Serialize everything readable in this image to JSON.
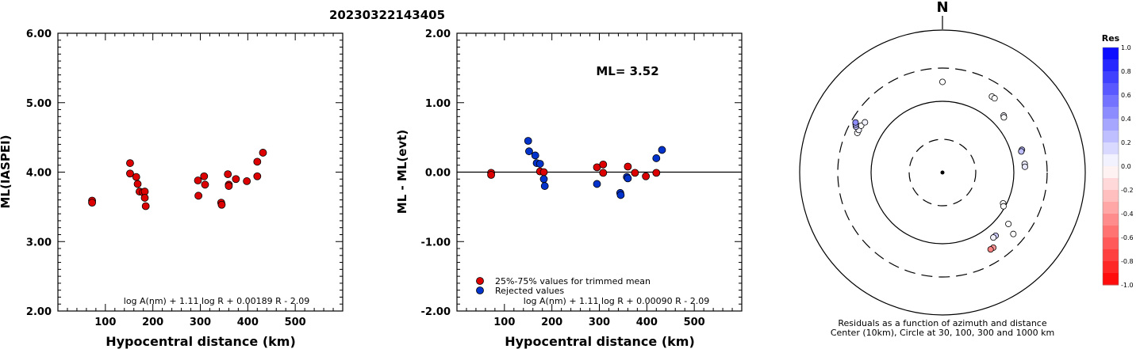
{
  "event_id": "20230322143405",
  "north_label": "N",
  "colors": {
    "red_marker": "#dd0000",
    "blue_marker": "#0033cc",
    "axis": "#000000"
  },
  "chart_data": [
    {
      "type": "scatter",
      "id": "ml_vs_distance",
      "xlabel": "Hypocentral distance (km)",
      "ylabel": "ML(IASPEI)",
      "xlim": [
        0,
        600
      ],
      "ylim": [
        2.0,
        6.0
      ],
      "xticks": [
        100,
        200,
        300,
        400,
        500
      ],
      "yticks": [
        "2.00",
        "3.00",
        "4.00",
        "5.00",
        "6.00"
      ],
      "formula": "log A(nm) + 1.11 log R + 0.00189 R - 2.09",
      "grid": false,
      "series": [
        {
          "marker_color": "red",
          "x": [
            72,
            72,
            152,
            152,
            165,
            168,
            172,
            179,
            183,
            183,
            185,
            295,
            296,
            308,
            310,
            344,
            345,
            358,
            360,
            360,
            375,
            398,
            420,
            420,
            432
          ],
          "y": [
            3.59,
            3.56,
            4.13,
            3.98,
            3.93,
            3.83,
            3.72,
            3.71,
            3.72,
            3.63,
            3.51,
            3.88,
            3.66,
            3.94,
            3.82,
            3.56,
            3.53,
            3.97,
            3.82,
            3.8,
            3.9,
            3.87,
            4.15,
            3.94,
            4.28
          ]
        }
      ]
    },
    {
      "type": "scatter",
      "id": "residual_vs_distance",
      "xlabel": "Hypocentral distance (km)",
      "ylabel": "ML - ML(evt)",
      "xlim": [
        0,
        600
      ],
      "ylim": [
        -2.0,
        2.0
      ],
      "xticks": [
        100,
        200,
        300,
        400,
        500
      ],
      "yticks": [
        "-2.00",
        "-1.00",
        "0.00",
        "1.00",
        "2.00"
      ],
      "annotation": "ML= 3.52",
      "formula": "log A(nm) + 1.11 log R + 0.00090 R - 2.09",
      "zero_line": true,
      "legend_position": "bottom-left",
      "series": [
        {
          "name": "25%-75% values for trimmed mean",
          "marker_color": "red",
          "x": [
            72,
            72,
            175,
            183,
            295,
            308,
            308,
            360,
            375,
            398,
            420
          ],
          "y": [
            -0.01,
            -0.04,
            0.01,
            0.0,
            0.07,
            0.11,
            -0.01,
            0.08,
            -0.01,
            -0.06,
            -0.01
          ]
        },
        {
          "name": "Rejected values",
          "marker_color": "blue",
          "x": [
            150,
            152,
            165,
            168,
            175,
            183,
            185,
            295,
            344,
            345,
            358,
            360,
            420,
            432
          ],
          "y": [
            0.45,
            0.3,
            0.24,
            0.13,
            0.12,
            -0.1,
            -0.2,
            -0.17,
            -0.3,
            -0.33,
            -0.07,
            -0.09,
            0.2,
            0.32
          ]
        }
      ]
    },
    {
      "type": "scatter",
      "id": "azimuth_residual_map",
      "caption_line1": "Residuals as a function of azimuth and distance",
      "caption_line2": "Center (10km), Circle at 30, 100, 300 and 1000 km",
      "ring_distances_km": [
        30,
        100,
        300,
        1000
      ],
      "colorbar": {
        "title": "Res",
        "ticks": [
          "1.0",
          "0.8",
          "0.6",
          "0.4",
          "0.2",
          "0.0",
          "-0.2",
          "-0.4",
          "-0.6",
          "-0.8",
          "-1.0"
        ],
        "range": [
          -1.0,
          1.0
        ]
      },
      "stations": [
        {
          "azimuth": 0,
          "distance_km": 190,
          "residual": 0.0
        },
        {
          "azimuth": 33,
          "distance_km": 190,
          "residual": 0.01
        },
        {
          "azimuth": 35,
          "distance_km": 190,
          "residual": 0.0
        },
        {
          "azimuth": 47,
          "distance_km": 150,
          "residual": 0.05
        },
        {
          "azimuth": 48,
          "distance_km": 145,
          "residual": 0.0
        },
        {
          "azimuth": 74,
          "distance_km": 145,
          "residual": 0.3
        },
        {
          "azimuth": 75,
          "distance_km": 140,
          "residual": 0.25
        },
        {
          "azimuth": 84,
          "distance_km": 145,
          "residual": 0.08
        },
        {
          "azimuth": 86,
          "distance_km": 145,
          "residual": 0.1
        },
        {
          "azimuth": 117,
          "distance_km": 90,
          "residual": 0.0
        },
        {
          "azimuth": 119,
          "distance_km": 95,
          "residual": 0.0
        },
        {
          "azimuth": 128,
          "distance_km": 150,
          "residual": 0.0
        },
        {
          "azimuth": 131,
          "distance_km": 210,
          "residual": 0.0
        },
        {
          "azimuth": 140,
          "distance_km": 145,
          "residual": 0.2
        },
        {
          "azimuth": 142,
          "distance_km": 145,
          "residual": 0.05
        },
        {
          "azimuth": 146,
          "distance_km": 190,
          "residual": -0.4
        },
        {
          "azimuth": 148,
          "distance_km": 190,
          "residual": -0.5
        },
        {
          "azimuth": 295,
          "distance_km": 210,
          "residual": 0.0
        },
        {
          "azimuth": 297,
          "distance_km": 210,
          "residual": 0.05
        },
        {
          "azimuth": 300,
          "distance_km": 210,
          "residual": 0.0
        },
        {
          "azimuth": 303,
          "distance_km": 200,
          "residual": 0.05
        },
        {
          "azimuth": 298,
          "distance_km": 240,
          "residual": 0.25
        },
        {
          "azimuth": 299,
          "distance_km": 250,
          "residual": 0.32
        },
        {
          "azimuth": 300,
          "distance_km": 260,
          "residual": 0.45
        }
      ]
    }
  ]
}
